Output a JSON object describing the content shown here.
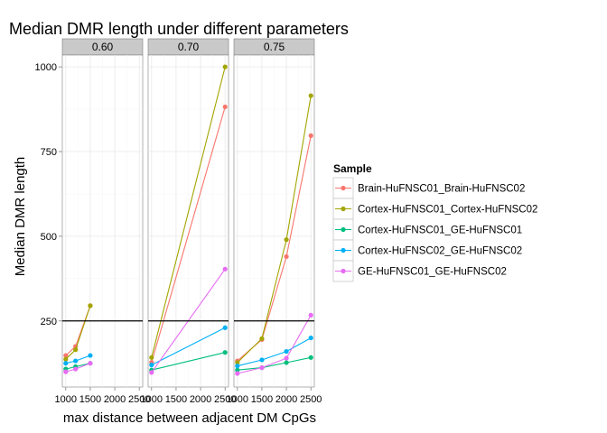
{
  "chart_data": {
    "type": "line",
    "title": "Median DMR length under different parameters",
    "xlabel": "max distance between adjacent DM CpGs",
    "ylabel": "Median DMR length",
    "xlim": [
      930,
      2570
    ],
    "ylim": [
      55,
      1035
    ],
    "x_ticks": [
      1000,
      1500,
      2000,
      2500
    ],
    "x_tick_labels": [
      "1000",
      "1500",
      "2000",
      "2500"
    ],
    "y_ticks": [
      250,
      500,
      750,
      1000
    ],
    "y_tick_labels": [
      "250",
      "500",
      "750",
      "1000"
    ],
    "hline": 250,
    "grid": true,
    "legend_position": "right",
    "legend_title": "Sample",
    "facets": [
      {
        "label": "0.60",
        "series": [
          {
            "name": "Brain-HuFNSC01_Brain-HuFNSC02",
            "x": [
              1000,
              1200,
              1500
            ],
            "y": [
              148,
              175,
              295
            ]
          },
          {
            "name": "Cortex-HuFNSC01_Cortex-HuFNSC02",
            "x": [
              1000,
              1200,
              1500
            ],
            "y": [
              137,
              165,
              295
            ]
          },
          {
            "name": "Cortex-HuFNSC01_GE-HuFNSC01",
            "x": [
              1000,
              1200,
              1500
            ],
            "y": [
              108,
              115,
              125
            ]
          },
          {
            "name": "Cortex-HuFNSC02_GE-HuFNSC02",
            "x": [
              1000,
              1200,
              1500
            ],
            "y": [
              125,
              132,
              148
            ]
          },
          {
            "name": "GE-HuFNSC01_GE-HuFNSC02",
            "x": [
              1000,
              1200,
              1500
            ],
            "y": [
              100,
              108,
              125
            ]
          }
        ]
      },
      {
        "label": "0.70",
        "series": [
          {
            "name": "Brain-HuFNSC01_Brain-HuFNSC02",
            "x": [
              1000,
              2500
            ],
            "y": [
              128,
              882
            ]
          },
          {
            "name": "Cortex-HuFNSC01_Cortex-HuFNSC02",
            "x": [
              1000,
              2500
            ],
            "y": [
              142,
              1000
            ]
          },
          {
            "name": "Cortex-HuFNSC01_GE-HuFNSC01",
            "x": [
              1000,
              2500
            ],
            "y": [
              105,
              157
            ]
          },
          {
            "name": "Cortex-HuFNSC02_GE-HuFNSC02",
            "x": [
              1000,
              2500
            ],
            "y": [
              120,
              230
            ]
          },
          {
            "name": "GE-HuFNSC01_GE-HuFNSC02",
            "x": [
              1000,
              2500
            ],
            "y": [
              98,
              403
            ]
          }
        ]
      },
      {
        "label": "0.75",
        "series": [
          {
            "name": "Brain-HuFNSC01_Brain-HuFNSC02",
            "x": [
              1000,
              1500,
              2000,
              2500
            ],
            "y": [
              132,
              195,
              440,
              797
            ]
          },
          {
            "name": "Cortex-HuFNSC01_Cortex-HuFNSC02",
            "x": [
              1000,
              1500,
              2000,
              2500
            ],
            "y": [
              127,
              198,
              490,
              915
            ]
          },
          {
            "name": "Cortex-HuFNSC01_GE-HuFNSC01",
            "x": [
              1000,
              1500,
              2000,
              2500
            ],
            "y": [
              105,
              112,
              127,
              142
            ]
          },
          {
            "name": "Cortex-HuFNSC02_GE-HuFNSC02",
            "x": [
              1000,
              1500,
              2000,
              2500
            ],
            "y": [
              117,
              135,
              160,
              200
            ]
          },
          {
            "name": "GE-HuFNSC01_GE-HuFNSC02",
            "x": [
              1000,
              1500,
              2000,
              2500
            ],
            "y": [
              95,
              112,
              140,
              267
            ]
          }
        ]
      }
    ],
    "colors": [
      "#f8766d",
      "#a3a500",
      "#00bf7d",
      "#00b0f6",
      "#e76bf3"
    ],
    "legend": [
      "Brain-HuFNSC01_Brain-HuFNSC02",
      "Cortex-HuFNSC01_Cortex-HuFNSC02",
      "Cortex-HuFNSC01_GE-HuFNSC01",
      "Cortex-HuFNSC02_GE-HuFNSC02",
      "GE-HuFNSC01_GE-HuFNSC02"
    ]
  }
}
